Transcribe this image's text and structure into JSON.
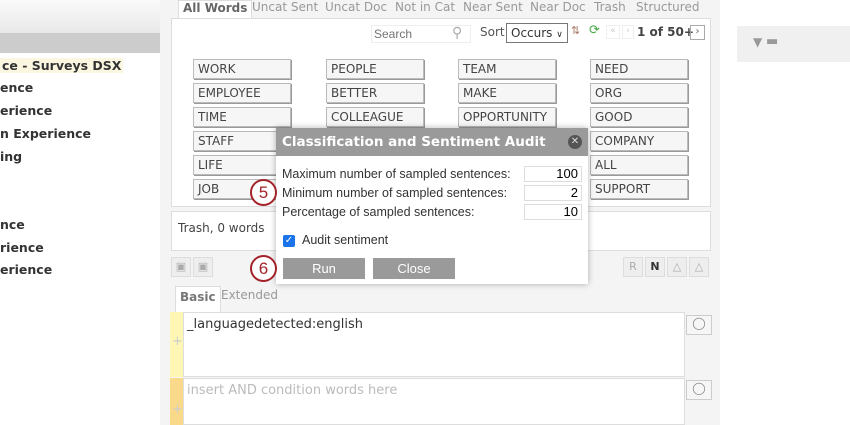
{
  "sidebar": {
    "items": [
      "ce - Surveys DSX",
      "ence",
      "erience",
      "n Experience",
      "ing",
      "nce",
      "rience",
      "erience"
    ]
  },
  "tabs": [
    "All Words",
    "Uncat Sent",
    "Uncat Doc",
    "Not in Cat",
    "Near Sent",
    "Near Doc",
    "Trash",
    "Structured"
  ],
  "search": {
    "placeholder": "Search"
  },
  "sort": {
    "label": "Sort",
    "value": "Occurs"
  },
  "pager": {
    "text": "1 of 50+"
  },
  "words": [
    "WORK",
    "PEOPLE",
    "TEAM",
    "NEED",
    "EMPLOYEE",
    "BETTER",
    "MAKE",
    "ORG",
    "TIME",
    "COLLEAGUE",
    "OPPORTUNITY",
    "GOOD",
    "STAFF",
    "",
    "",
    "COMPANY",
    "LIFE",
    "",
    "",
    "ALL",
    "JOB",
    "",
    "",
    "SUPPORT"
  ],
  "trash": {
    "text": "Trash, 0 words"
  },
  "query_tabs": [
    "Basic",
    "Extended"
  ],
  "query": {
    "value": "_languagedetected:english",
    "and_placeholder": "insert AND condition words here"
  },
  "dialog": {
    "title": "Classification and Sentiment Audit",
    "fields": [
      {
        "label": "Maximum number of sampled sentences:",
        "value": "100"
      },
      {
        "label": "Minimum number of sampled sentences:",
        "value": "2"
      },
      {
        "label": "Percentage of sampled sentences:",
        "value": "10"
      }
    ],
    "audit_label": "Audit sentiment",
    "audit_checked": true,
    "run": "Run",
    "close": "Close"
  },
  "markers": [
    "5",
    "6"
  ],
  "colors": {
    "marker": "#a3232a",
    "dialog_header": "#9a9a9a"
  }
}
